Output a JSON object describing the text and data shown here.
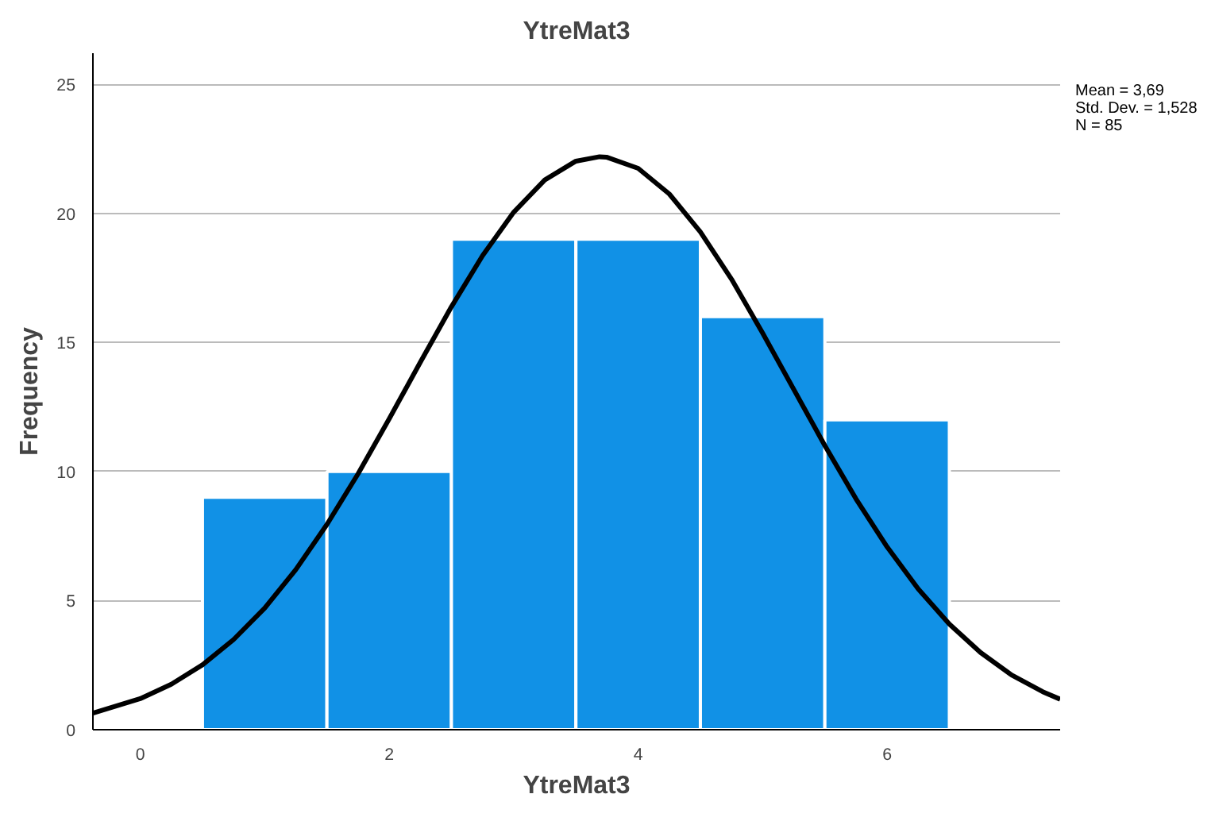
{
  "chart_data": {
    "type": "histogram",
    "title": "YtreMat3",
    "xlabel": "YtreMat3",
    "ylabel": "Frequency",
    "series": [
      {
        "bins": [
          0.5,
          1.5,
          2.5,
          3.5,
          4.5,
          5.5,
          6.5
        ],
        "values": [
          9,
          10,
          19,
          19,
          16,
          12
        ],
        "color": "#1191e6"
      },
      {
        "type": "line",
        "color": "#000000",
        "x": [
          -0.38,
          0,
          0.25,
          0.5,
          0.75,
          1,
          1.25,
          1.5,
          1.75,
          2,
          2.25,
          2.5,
          2.75,
          3,
          3.25,
          3.5,
          3.69,
          3.75,
          4,
          4.25,
          4.5,
          4.75,
          5,
          5.25,
          5.5,
          5.75,
          6,
          6.25,
          6.5,
          6.75,
          7,
          7.25,
          7.39
        ],
        "values": [
          0.64,
          1.2,
          1.76,
          2.51,
          3.49,
          4.71,
          6.2,
          7.95,
          9.91,
          12.04,
          14.23,
          16.38,
          18.36,
          20.04,
          21.29,
          22.02,
          22.19,
          22.17,
          21.74,
          20.75,
          19.28,
          17.45,
          15.36,
          13.18,
          11.0,
          8.94,
          7.08,
          5.45,
          4.09,
          2.99,
          2.12,
          1.47,
          1.18
        ]
      }
    ],
    "xlim": [
      -0.38,
      7.39
    ],
    "ylim": [
      0,
      26.2
    ],
    "xticks": [
      0,
      2,
      4,
      6
    ],
    "yticks": [
      0,
      5,
      10,
      15,
      20,
      25
    ],
    "grid": "y",
    "annotations": [
      "Mean = 3,69",
      "Std. Dev. = 1,528",
      "N = 85"
    ]
  }
}
